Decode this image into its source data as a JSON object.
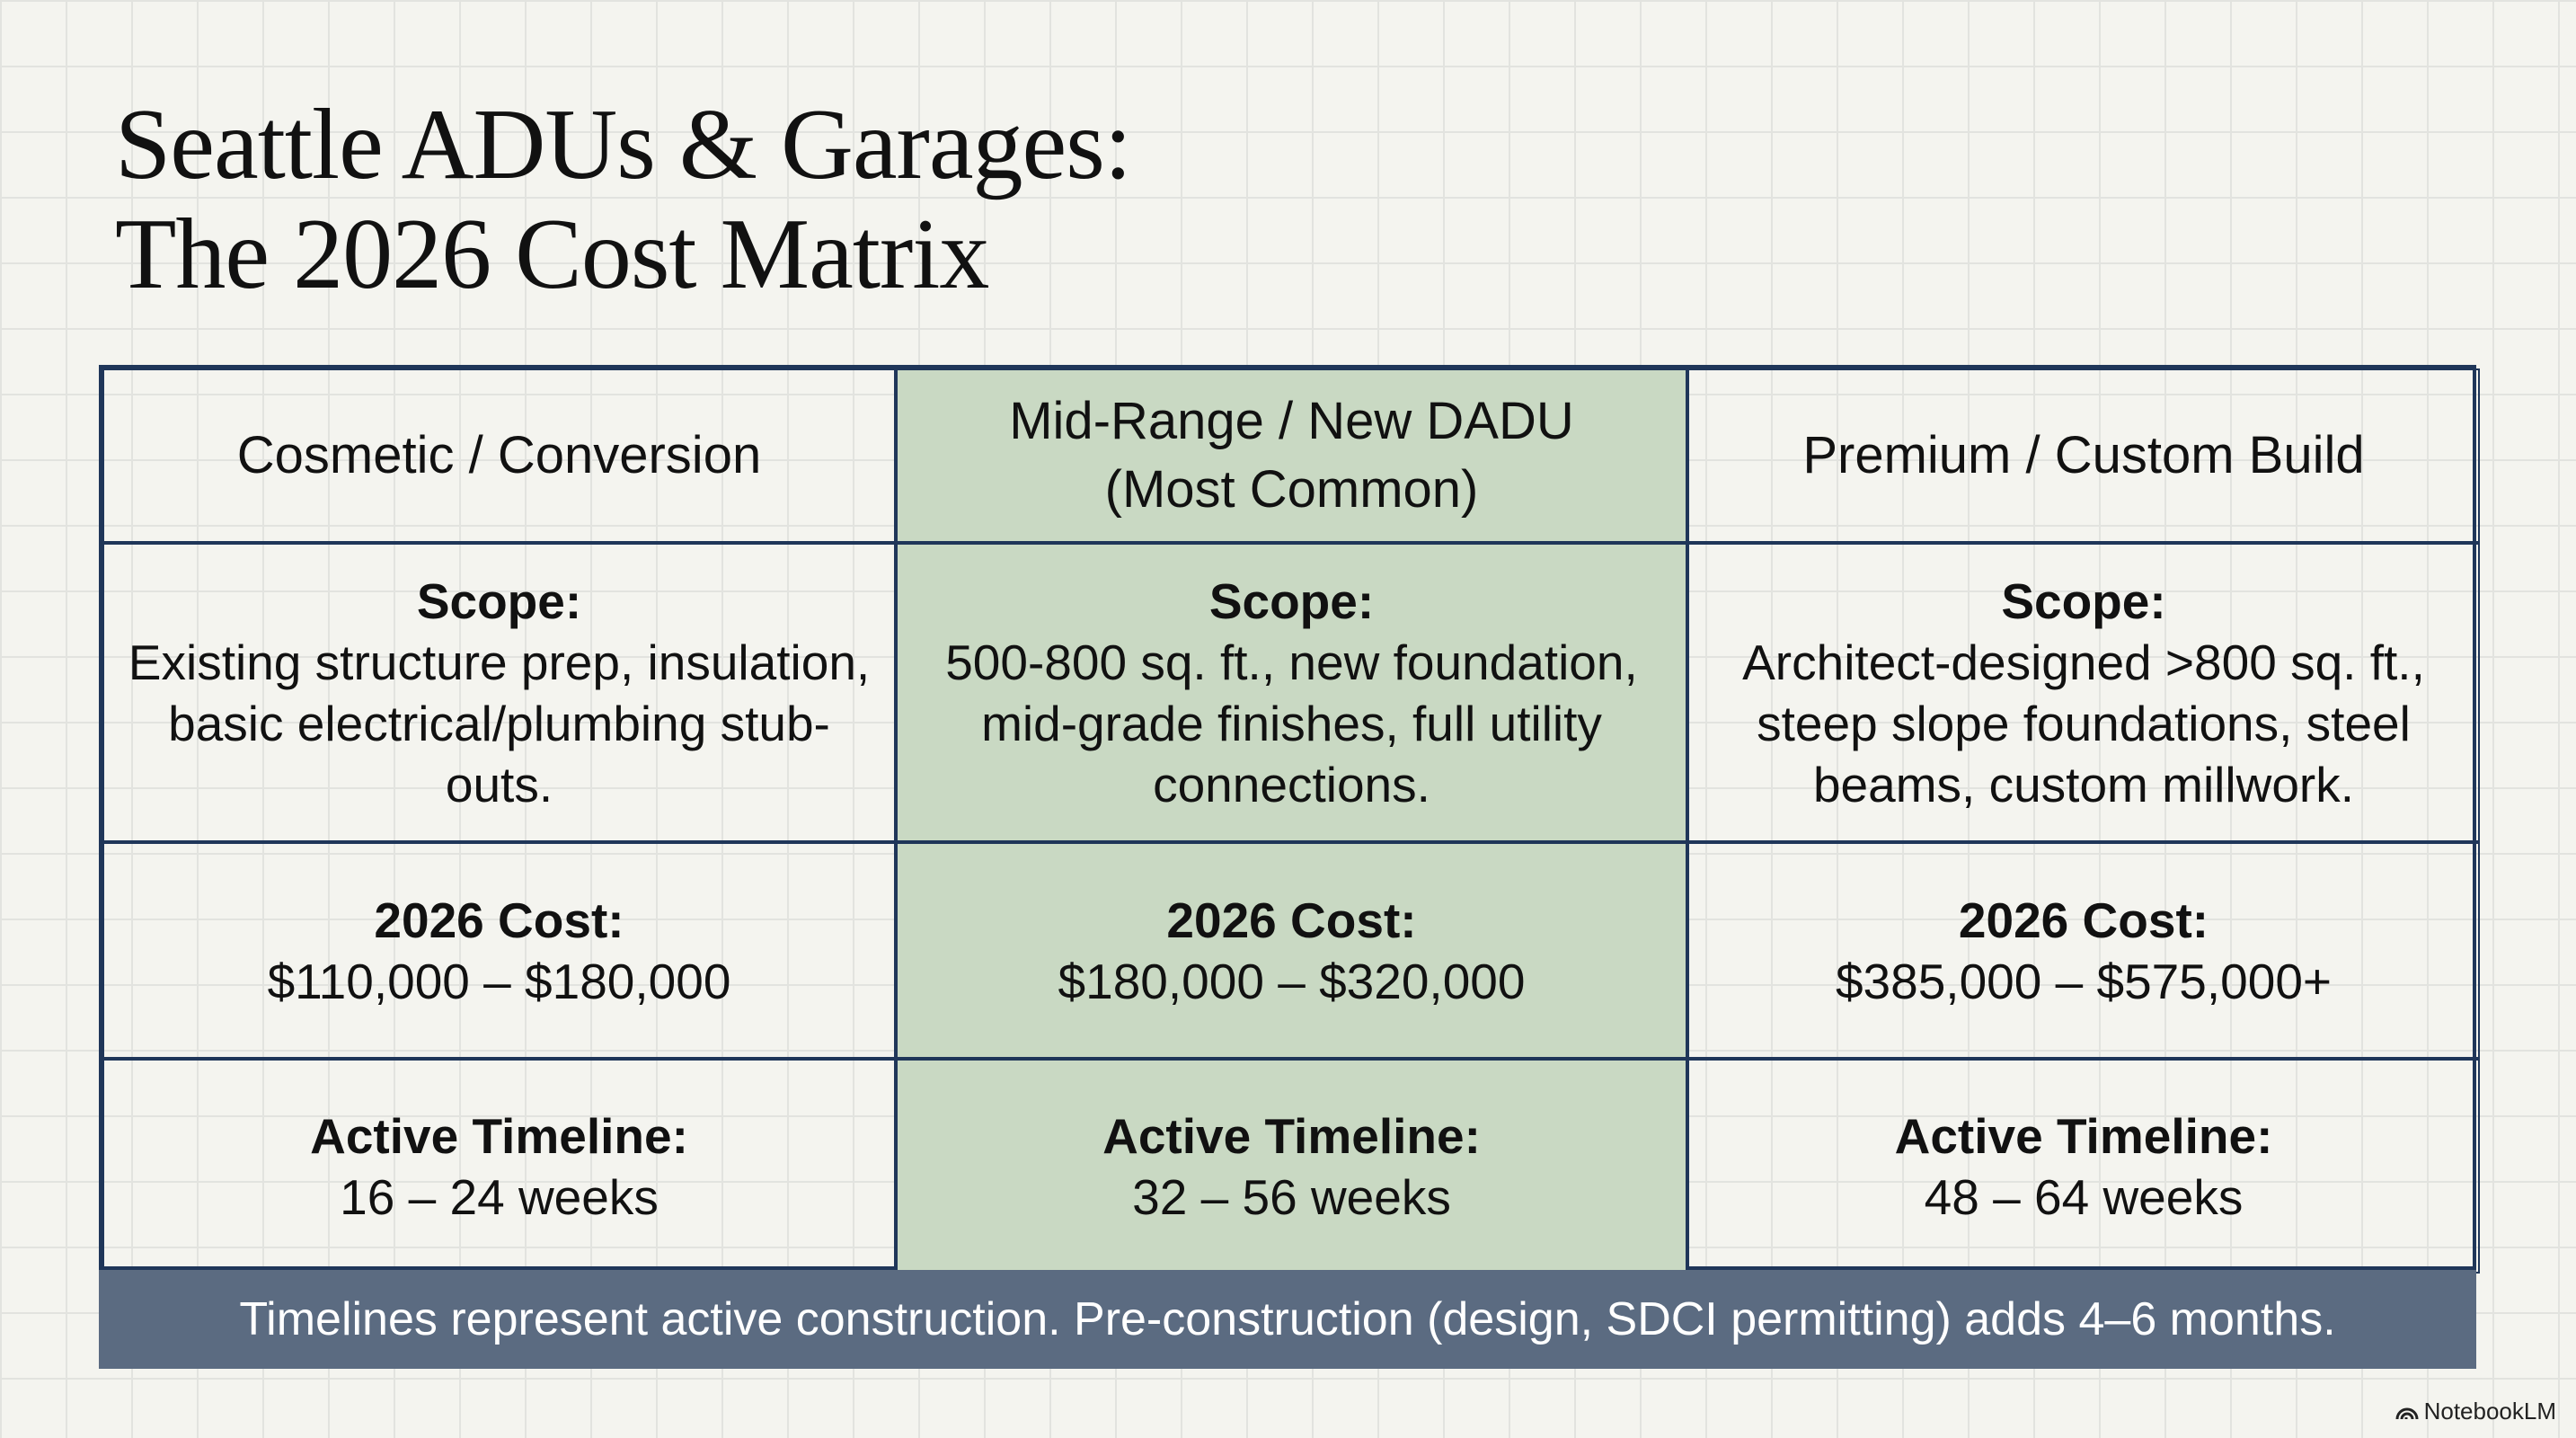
{
  "title": [
    "Seattle ADUs & Garages:",
    "The 2026 Cost Matrix"
  ],
  "table": {
    "columns": [
      {
        "name": "Cosmetic / Conversion"
      },
      {
        "name": "Mid-Range / New DADU",
        "note": "(Most Common)"
      },
      {
        "name": "Premium / Custom Build"
      }
    ],
    "rows": [
      {
        "cells": [
          {
            "label": "Scope:",
            "text": "Existing structure prep, insulation, basic electrical/plumbing stub-outs."
          },
          {
            "label": "Scope:",
            "text": "500-800 sq. ft., new foundation, mid-grade finishes, full utility connections."
          },
          {
            "label": "Scope:",
            "text": "Architect-designed >800 sq. ft., steep slope foundations, steel beams, custom millwork."
          }
        ]
      },
      {
        "cells": [
          {
            "label": "2026 Cost:",
            "text": "$110,000 – $180,000"
          },
          {
            "label": "2026 Cost:",
            "text": "$180,000 – $320,000"
          },
          {
            "label": "2026 Cost:",
            "text": "$385,000 – $575,000+"
          }
        ]
      },
      {
        "cells": [
          {
            "label": "Active Timeline:",
            "text": "16 – 24 weeks"
          },
          {
            "label": "Active Timeline:",
            "text": "32 – 56 weeks"
          },
          {
            "label": "Active Timeline:",
            "text": "48 – 64 weeks"
          }
        ]
      }
    ],
    "footnote": "Timelines represent active construction. Pre-construction (design, SDCI permitting) adds 4–6 months."
  },
  "watermark": "NotebookLM"
}
